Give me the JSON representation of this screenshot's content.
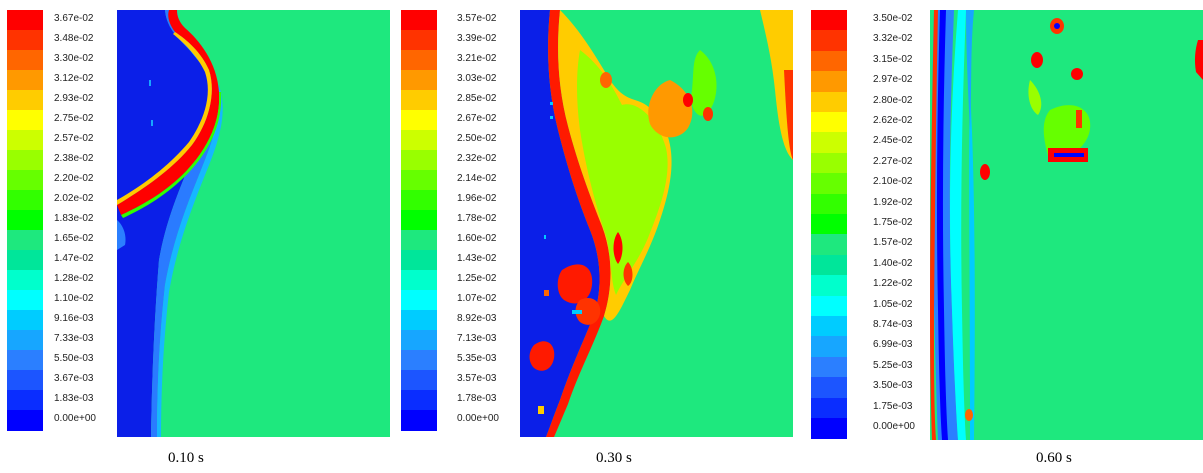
{
  "palette": [
    "#0000ff",
    "#0a2dff",
    "#1c55ff",
    "#2b7fff",
    "#17a6ff",
    "#00ccff",
    "#00ffff",
    "#00ffcc",
    "#00e69a",
    "#1ee87e",
    "#00ff00",
    "#32ff00",
    "#66ff00",
    "#99ff00",
    "#ccff00",
    "#ffff00",
    "#ffcc00",
    "#ff9900",
    "#ff6600",
    "#ff3300",
    "#ff0000"
  ],
  "panels": [
    {
      "time_label": "0.10 s",
      "ticks": [
        "3.67e-02",
        "3.48e-02",
        "3.30e-02",
        "3.12e-02",
        "2.93e-02",
        "2.75e-02",
        "2.57e-02",
        "2.38e-02",
        "2.20e-02",
        "2.02e-02",
        "1.83e-02",
        "1.65e-02",
        "1.47e-02",
        "1.28e-02",
        "1.10e-02",
        "9.16e-03",
        "7.33e-03",
        "5.50e-03",
        "3.67e-03",
        "1.83e-03",
        "0.00e+00"
      ]
    },
    {
      "time_label": "0.30 s",
      "ticks": [
        "3.57e-02",
        "3.39e-02",
        "3.21e-02",
        "3.03e-02",
        "2.85e-02",
        "2.67e-02",
        "2.50e-02",
        "2.32e-02",
        "2.14e-02",
        "1.96e-02",
        "1.78e-02",
        "1.60e-02",
        "1.43e-02",
        "1.25e-02",
        "1.07e-02",
        "8.92e-03",
        "7.13e-03",
        "5.35e-03",
        "3.57e-03",
        "1.78e-03",
        "0.00e+00"
      ]
    },
    {
      "time_label": "0.60 s",
      "ticks": [
        "3.50e-02",
        "3.32e-02",
        "3.15e-02",
        "2.97e-02",
        "2.80e-02",
        "2.62e-02",
        "2.45e-02",
        "2.27e-02",
        "2.10e-02",
        "1.92e-02",
        "1.75e-02",
        "1.57e-02",
        "1.40e-02",
        "1.22e-02",
        "1.05e-02",
        "8.74e-03",
        "6.99e-03",
        "5.25e-03",
        "3.50e-03",
        "1.75e-03",
        "0.00e+00"
      ]
    }
  ]
}
